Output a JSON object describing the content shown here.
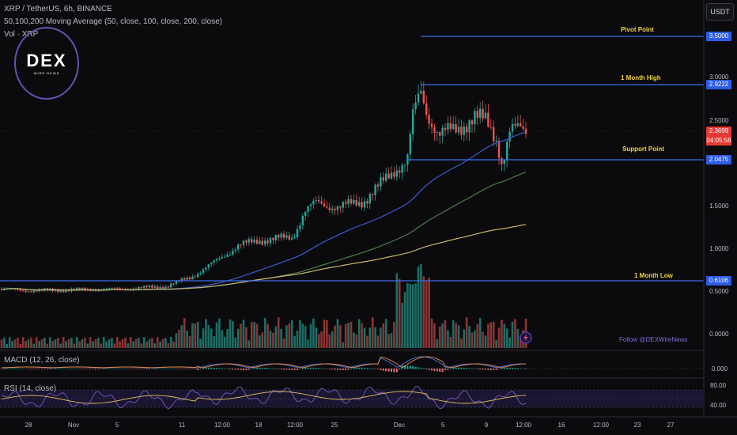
{
  "header": {
    "symbol_line": "XRP / TetherUS, 6h, BINANCE",
    "ma_line": "50,100,200 Moving Average (50, close, 100, close, 200, close)",
    "vol_line": "Vol · XRP"
  },
  "currency_button": "USDT",
  "logo": {
    "main": "DEX",
    "sub": "WIRE NEWS"
  },
  "price_axis": [
    "3.0000",
    "2.5000",
    "1.5000",
    "1.0000",
    "0.5000",
    "0.0000"
  ],
  "price_tags": {
    "pivot": "3.5000",
    "month_high": "2.9222",
    "current": "2.3699",
    "countdown": "04:05:56",
    "support": "2.0475",
    "month_low": "0.6106"
  },
  "levels": {
    "pivot": "Pivot Point",
    "month_high": "1 Month High",
    "support": "Support Point",
    "month_low": "1 Month Low"
  },
  "macd": {
    "label": "MACD (12, 26, close)",
    "axis": "0.000"
  },
  "rsi": {
    "label": "RSI (14, close)",
    "upper": "80.00",
    "lower": "40.00"
  },
  "time_axis": [
    "28",
    "Nov",
    "5",
    "11",
    "12:00",
    "18",
    "12:00",
    "25",
    "Dec",
    "5",
    "9",
    "12:00",
    "16",
    "12:00",
    "23",
    "27"
  ],
  "follow_text": "Follow @DEXWireNews",
  "colors": {
    "up": "#26a69a",
    "down": "#ef5350",
    "ma50": "#3d5bd1",
    "ma100": "#4c7d4a",
    "ma200": "#c9b46a",
    "level": "#3d6bf0",
    "current_tag": "#e53935"
  }
}
